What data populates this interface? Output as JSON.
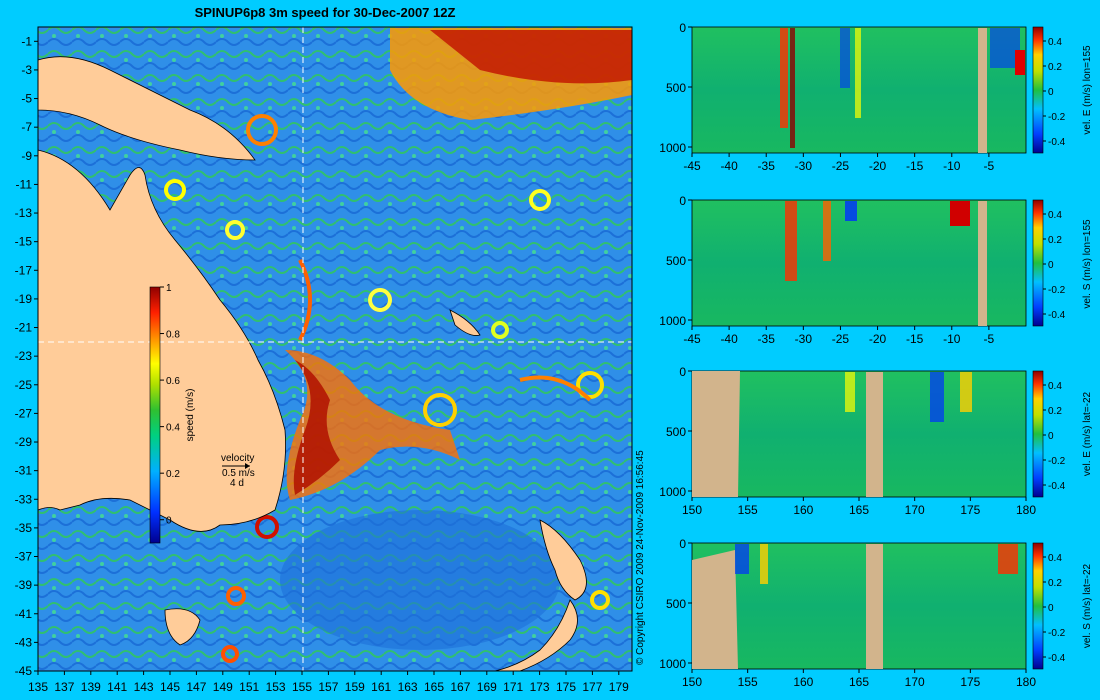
{
  "chart_data": [
    {
      "type": "heatmap",
      "title": "SPINUP6p8 3m speed for 30-Dec-2007 12Z",
      "x_ticks": [
        "135",
        "137",
        "139",
        "141",
        "143",
        "145",
        "147",
        "149",
        "151",
        "153",
        "155",
        "157",
        "159",
        "161",
        "163",
        "165",
        "167",
        "169",
        "171",
        "173",
        "175",
        "177",
        "179"
      ],
      "y_ticks": [
        "-1",
        "-3",
        "-5",
        "-7",
        "-9",
        "-11",
        "-13",
        "-15",
        "-17",
        "-19",
        "-21",
        "-23",
        "-25",
        "-27",
        "-29",
        "-31",
        "-33",
        "-35",
        "-37",
        "-39",
        "-41",
        "-43",
        "-45"
      ],
      "xlim": [
        135,
        180
      ],
      "ylim": [
        -45,
        0
      ],
      "section_lon": 155,
      "section_lat": -22,
      "colorbar": {
        "label": "speed (m/s)",
        "min": -0.1,
        "max": 1.0,
        "ticks": [
          "0",
          "0.2",
          "0.4",
          "0.6",
          "0.8",
          "1"
        ]
      },
      "velocity_key": {
        "label": "velocity",
        "scale": "0.5 m/s",
        "duration": "4 d"
      }
    },
    {
      "type": "heatmap",
      "x_ticks": [
        "-45",
        "-40",
        "-35",
        "-30",
        "-25",
        "-20",
        "-15",
        "-10",
        "-5"
      ],
      "y_ticks": [
        "0",
        "500",
        "1000"
      ],
      "xlim": [
        -45,
        0
      ],
      "ylim": [
        1050,
        0
      ],
      "colorbar": {
        "label": "vel. E (m/s) lon=155",
        "ticks": [
          "0.4",
          "0.2",
          "0",
          "-0.2",
          "-0.4"
        ]
      }
    },
    {
      "type": "heatmap",
      "x_ticks": [
        "-45",
        "-40",
        "-35",
        "-30",
        "-25",
        "-20",
        "-15",
        "-10",
        "-5"
      ],
      "y_ticks": [
        "0",
        "500",
        "1000"
      ],
      "xlim": [
        -45,
        0
      ],
      "ylim": [
        1050,
        0
      ],
      "colorbar": {
        "label": "vel. S (m/s) lon=155",
        "ticks": [
          "0.4",
          "0.2",
          "0",
          "-0.2",
          "-0.4"
        ]
      }
    },
    {
      "type": "heatmap",
      "x_ticks": [
        "150",
        "155",
        "160",
        "165",
        "170",
        "175",
        "180"
      ],
      "y_ticks": [
        "0",
        "500",
        "1000"
      ],
      "xlim": [
        150,
        180
      ],
      "ylim": [
        1050,
        0
      ],
      "colorbar": {
        "label": "vel. E (m/s) lat=-22",
        "ticks": [
          "0.4",
          "0.2",
          "0",
          "-0.2",
          "-0.4"
        ]
      }
    },
    {
      "type": "heatmap",
      "x_ticks": [
        "150",
        "155",
        "160",
        "165",
        "170",
        "175",
        "180"
      ],
      "y_ticks": [
        "0",
        "500",
        "1000"
      ],
      "xlim": [
        150,
        180
      ],
      "ylim": [
        1050,
        0
      ],
      "colorbar": {
        "label": "vel. S (m/s) lat=-22",
        "ticks": [
          "0.4",
          "0.2",
          "0",
          "-0.2",
          "-0.4"
        ]
      }
    }
  ],
  "copyright": "© Copyright CSIRO 2009   24-Nov-2009 16:56:45",
  "colors": {
    "background": "#00ccff",
    "land": "#ffcc99",
    "section_land": "#d2b48c"
  }
}
